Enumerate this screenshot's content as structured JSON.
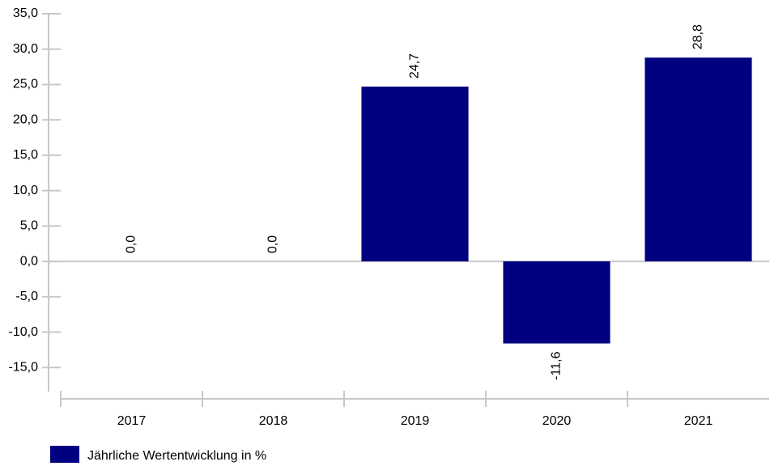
{
  "chart_data": {
    "type": "bar",
    "categories": [
      "2017",
      "2018",
      "2019",
      "2020",
      "2021"
    ],
    "series": [
      {
        "name": "Jährliche Wertentwicklung in %",
        "color": "#000080",
        "values": [
          0.0,
          0.0,
          24.7,
          -11.6,
          28.8
        ],
        "value_labels": [
          "0,0",
          "0,0",
          "24,7",
          "-11,6",
          "28,8"
        ]
      }
    ],
    "ylim": [
      -18.4,
      35
    ],
    "yticks": [
      {
        "value": 35,
        "label": "35,0"
      },
      {
        "value": 30,
        "label": "30,0"
      },
      {
        "value": 25,
        "label": "25,0"
      },
      {
        "value": 20,
        "label": "20,0"
      },
      {
        "value": 15,
        "label": "15,0"
      },
      {
        "value": 10,
        "label": "10,0"
      },
      {
        "value": 5,
        "label": "5,0"
      },
      {
        "value": 0,
        "label": "0,0"
      },
      {
        "value": -5,
        "label": "-5,0"
      },
      {
        "value": -10,
        "label": "-10,0"
      },
      {
        "value": -15,
        "label": "-15,0"
      }
    ],
    "legend": "bottom-left"
  }
}
